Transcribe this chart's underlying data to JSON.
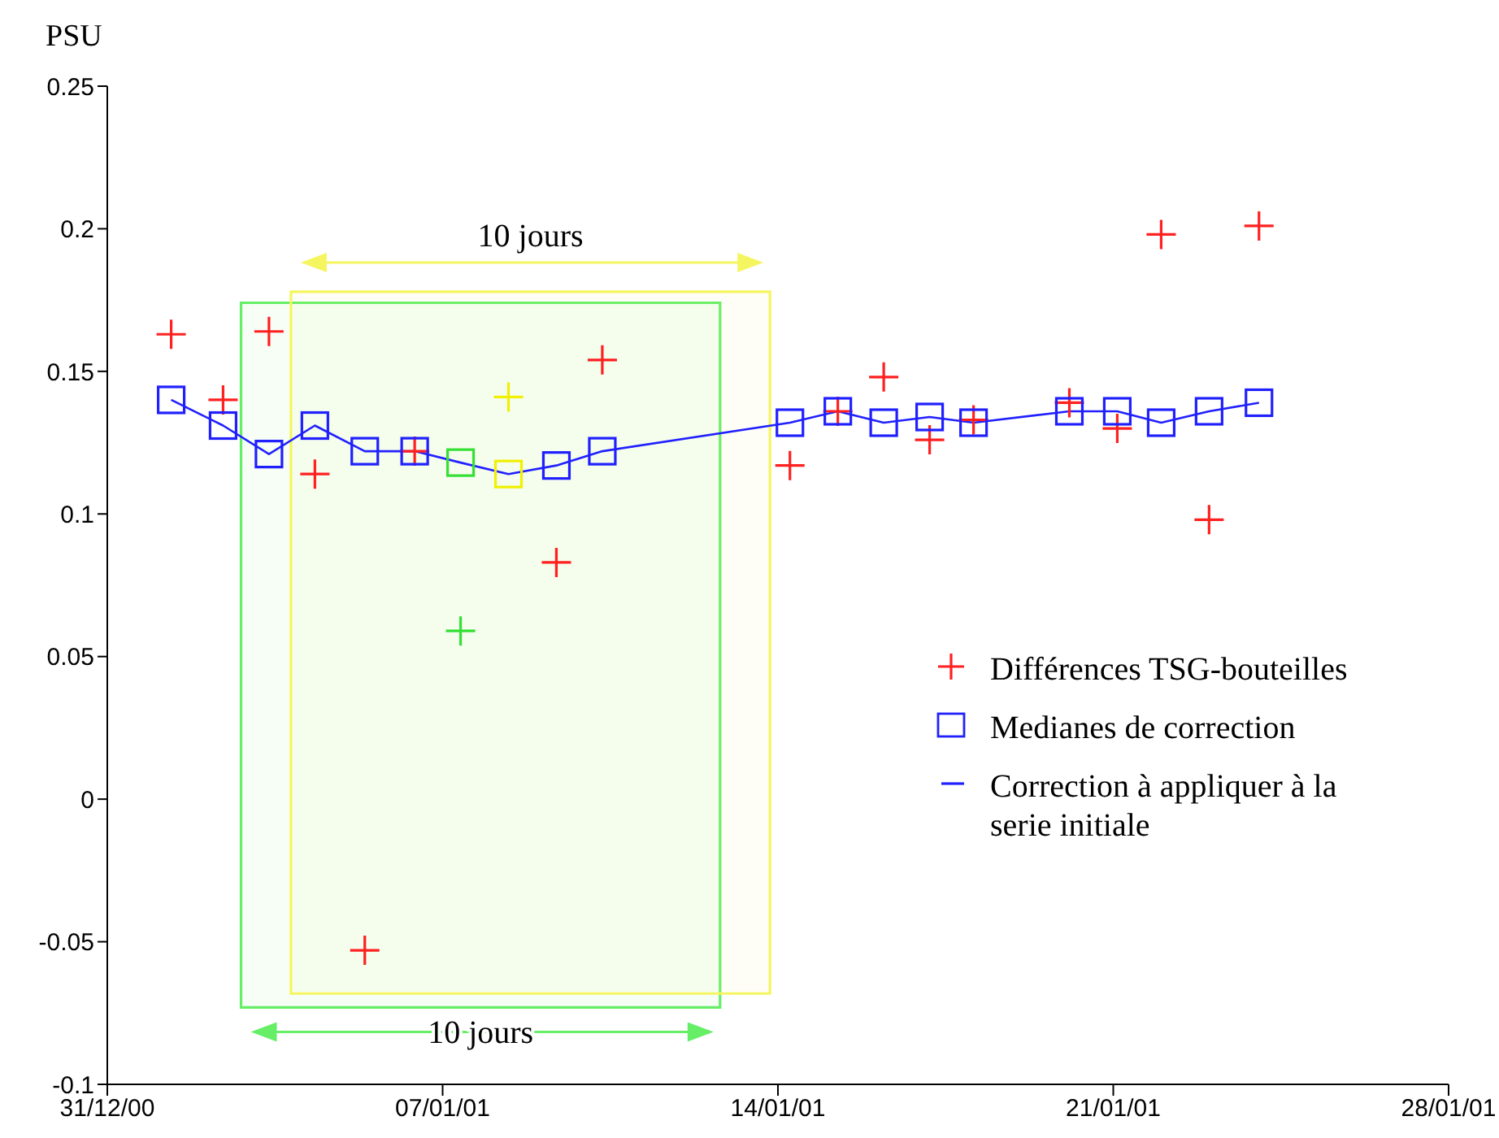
{
  "chart_data": {
    "type": "scatter",
    "ylabel": "PSU",
    "x": [
      "2001-01-01T08:00",
      "2001-01-02T10:00",
      "2001-01-03T09:00",
      "2001-01-04T08:00",
      "2001-01-05T09:00",
      "2001-01-06T10:00",
      "2001-01-07T09:00",
      "2001-01-08T09:00",
      "2001-01-09T09:00",
      "2001-01-10T08:00",
      "2001-01-14T06:00",
      "2001-01-15T06:00",
      "2001-01-16T05:00",
      "2001-01-17T04:00",
      "2001-01-18T02:00",
      "2001-01-20T02:00",
      "2001-01-21T02:00",
      "2001-01-22T00:00",
      "2001-01-23T00:00",
      "2001-01-24T01:00"
    ],
    "series": [
      {
        "name": "Différences TSG-bouteilles",
        "type": "scatter",
        "marker": "cross",
        "color": "#ff2020",
        "colors": [
          "#ff2020",
          "#ff2020",
          "#ff2020",
          "#ff2020",
          "#ff2020",
          "#ff2020",
          "#33e033",
          "#f0f000",
          "#ff2020",
          "#ff2020",
          "#ff2020",
          "#ff2020",
          "#ff2020",
          "#ff2020",
          "#ff2020",
          "#ff2020",
          "#ff2020",
          "#ff2020",
          "#ff2020",
          "#ff2020"
        ],
        "values": [
          0.163,
          0.14,
          0.164,
          0.114,
          -0.053,
          0.122,
          0.059,
          0.141,
          0.083,
          0.154,
          0.117,
          0.136,
          0.148,
          0.126,
          0.133,
          0.139,
          0.13,
          0.198,
          0.098,
          0.201
        ]
      },
      {
        "name": "Medianes de correction",
        "type": "scatter",
        "marker": "square",
        "color": "#2020ff",
        "colors": [
          "#2020ff",
          "#2020ff",
          "#2020ff",
          "#2020ff",
          "#2020ff",
          "#2020ff",
          "#33e033",
          "#f0f000",
          "#2020ff",
          "#2020ff",
          "#2020ff",
          "#2020ff",
          "#2020ff",
          "#2020ff",
          "#2020ff",
          "#2020ff",
          "#2020ff",
          "#2020ff",
          "#2020ff",
          "#2020ff"
        ],
        "values": [
          0.14,
          0.131,
          0.121,
          0.131,
          0.122,
          0.122,
          0.118,
          0.114,
          0.117,
          0.122,
          0.132,
          0.136,
          0.132,
          0.134,
          0.132,
          0.136,
          0.136,
          0.132,
          0.136,
          0.139
        ]
      },
      {
        "name": "Correction à appliquer à la serie initiale",
        "type": "line",
        "marker": "none",
        "line_style": "solid",
        "color": "#2020ff",
        "values": [
          0.14,
          0.131,
          0.121,
          0.131,
          0.122,
          0.122,
          0.118,
          0.114,
          0.117,
          0.122,
          0.132,
          0.136,
          0.132,
          0.134,
          0.132,
          0.136,
          0.136,
          0.132,
          0.136,
          0.139
        ]
      }
    ],
    "xlim": [
      "2000-12-31",
      "2001-01-28"
    ],
    "xticks": [
      {
        "value": "2000-12-31",
        "label": "31/12/00"
      },
      {
        "value": "2001-01-07",
        "label": "07/01/01"
      },
      {
        "value": "2001-01-14",
        "label": "14/01/01"
      },
      {
        "value": "2001-01-21",
        "label": "21/01/01"
      },
      {
        "value": "2001-01-28",
        "label": "28/01/01"
      }
    ],
    "ylim": [
      -0.1,
      0.25
    ],
    "yticks": [
      -0.1,
      -0.05,
      0,
      0.05,
      0.1,
      0.15,
      0.2,
      0.25
    ],
    "bands": [
      {
        "axis": "x",
        "from": "2001-01-02T19:00",
        "to": "2001-01-12T19:00",
        "label": "10 jours",
        "color": "#66ee66"
      },
      {
        "axis": "x",
        "from": "2001-01-03T20:00",
        "to": "2001-01-13T20:00",
        "label": "10 jours",
        "color": "#f5f560"
      }
    ],
    "grid": false,
    "legend": "right"
  }
}
